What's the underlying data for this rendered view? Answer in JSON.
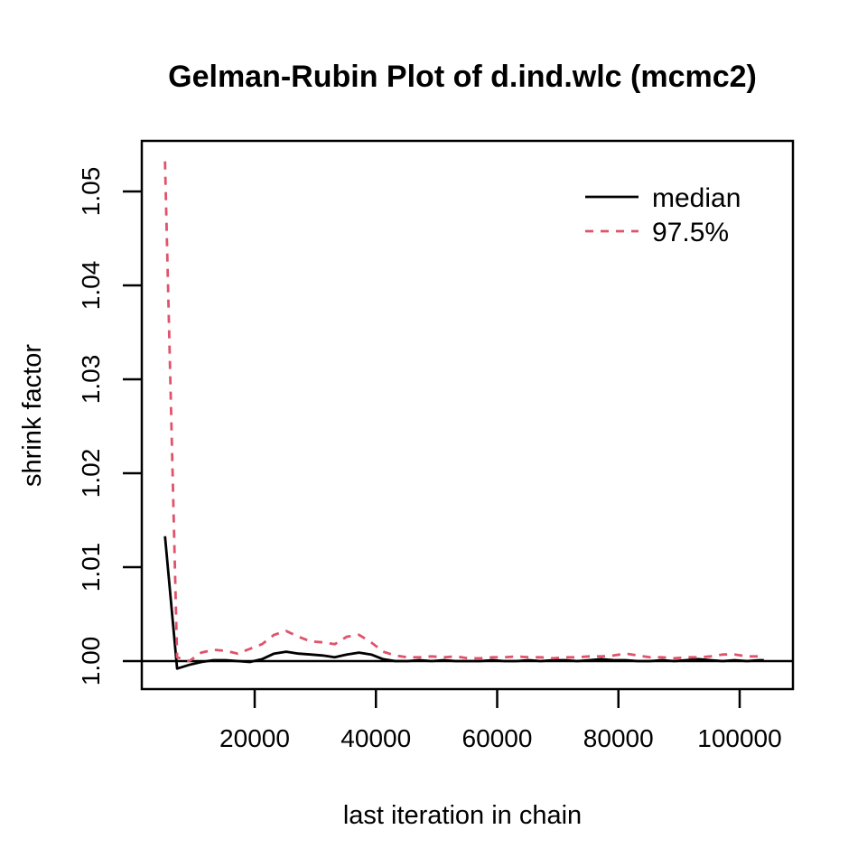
{
  "chart_data": {
    "type": "line",
    "title": "Gelman-Rubin Plot of d.ind.wlc (mcmc2)",
    "xlabel": "last iteration in chain",
    "ylabel": "shrink factor",
    "xlim": [
      1378,
      108790
    ],
    "ylim": [
      0.99702,
      1.05538
    ],
    "x_ticks": [
      20000,
      40000,
      60000,
      80000,
      100000
    ],
    "y_ticks": [
      1.0,
      1.01,
      1.02,
      1.03,
      1.04,
      1.05
    ],
    "grid": false,
    "hline": 1.0,
    "legend_position": "topright",
    "colors": {
      "median": "#000000",
      "percentile": "#DF536B"
    },
    "x": [
      5200,
      7200,
      9200,
      11200,
      13200,
      15200,
      17200,
      19200,
      21200,
      23200,
      25200,
      27200,
      29200,
      31200,
      33200,
      35200,
      37200,
      39200,
      41200,
      43200,
      45200,
      47200,
      49200,
      51200,
      53200,
      55200,
      57200,
      59200,
      61200,
      63200,
      65200,
      67200,
      69200,
      71200,
      73200,
      75200,
      77200,
      79200,
      81200,
      83200,
      85200,
      87200,
      89200,
      91200,
      93200,
      95200,
      97200,
      99200,
      101200,
      103200,
      104000
    ],
    "series": [
      {
        "name": "median",
        "color": "#000000",
        "dash": "solid",
        "values": [
          1.0133,
          0.9992,
          0.9996,
          0.9999,
          1.0001,
          1.0001,
          1.0,
          0.9999,
          1.0002,
          1.0008,
          1.001,
          1.0008,
          1.0007,
          1.0006,
          1.0004,
          1.0007,
          1.0009,
          1.0007,
          1.0002,
          1.0,
          1.0,
          1.0001,
          1.0,
          1.0001,
          1.0,
          1.0,
          1.0,
          1.0001,
          1.0,
          1.0,
          1.0001,
          1.0,
          1.0001,
          1.0001,
          1.0,
          1.0001,
          1.0002,
          1.0001,
          1.0001,
          1.0,
          1.0,
          1.0001,
          1.0,
          1.0001,
          1.0002,
          1.0001,
          1.0,
          1.0001,
          1.0,
          1.0001,
          1.0001
        ]
      },
      {
        "name": "97.5%",
        "color": "#DF536B",
        "dash": "dashed",
        "values": [
          1.0532,
          1.0004,
          1.0,
          1.0009,
          1.0012,
          1.0011,
          1.0008,
          1.0013,
          1.0018,
          1.0028,
          1.0032,
          1.0026,
          1.0021,
          1.002,
          1.0018,
          1.0026,
          1.0028,
          1.002,
          1.001,
          1.0006,
          1.0004,
          1.0004,
          1.0005,
          1.0004,
          1.0005,
          1.0003,
          1.0003,
          1.0004,
          1.0004,
          1.0005,
          1.0004,
          1.0004,
          1.0003,
          1.0004,
          1.0004,
          1.0005,
          1.0005,
          1.0006,
          1.0008,
          1.0006,
          1.0004,
          1.0004,
          1.0003,
          1.0004,
          1.0004,
          1.0005,
          1.0007,
          1.0007,
          1.0005,
          1.0005,
          1.0005
        ]
      }
    ]
  }
}
